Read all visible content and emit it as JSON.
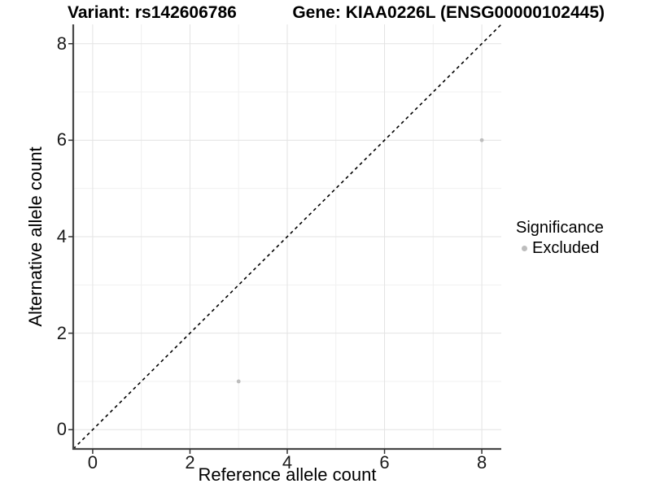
{
  "header": {
    "title_left": "Variant: rs142606786",
    "title_right": "Gene: KIAA0226L (ENSG00000102445)"
  },
  "legend": {
    "title": "Significance",
    "items": [
      {
        "label": "Excluded",
        "color": "#bdbdbd",
        "marker": "dot"
      }
    ]
  },
  "chart_data": {
    "type": "scatter",
    "xlabel": "Reference allele count",
    "ylabel": "Alternative allele count",
    "xlim": [
      -0.4,
      8.4
    ],
    "ylim": [
      -0.4,
      8.4
    ],
    "xticks": [
      0,
      2,
      4,
      6,
      8
    ],
    "yticks": [
      0,
      2,
      4,
      6,
      8
    ],
    "x_minor_gridlines": [
      1,
      3,
      5,
      7
    ],
    "y_minor_gridlines": [
      1,
      3,
      5,
      7
    ],
    "grid": "major-and-minor",
    "legend_position": "right",
    "series": [
      {
        "name": "Excluded",
        "color": "#bdbdbd",
        "marker_radius": 2.4,
        "points": [
          [
            3,
            1
          ],
          [
            8,
            6
          ]
        ]
      }
    ],
    "annotations": [
      {
        "type": "identity-line",
        "from": [
          -0.4,
          -0.4
        ],
        "to": [
          8.4,
          8.4
        ],
        "style": "dashed",
        "color": "#000000"
      }
    ]
  },
  "colors": {
    "background": "#ffffff",
    "grid_major": "#e3e3e3",
    "grid_minor": "#f0f0f0",
    "axis_line": "#474747",
    "tick_mark": "#333333",
    "point": "#bdbdbd",
    "text": "#000000"
  }
}
